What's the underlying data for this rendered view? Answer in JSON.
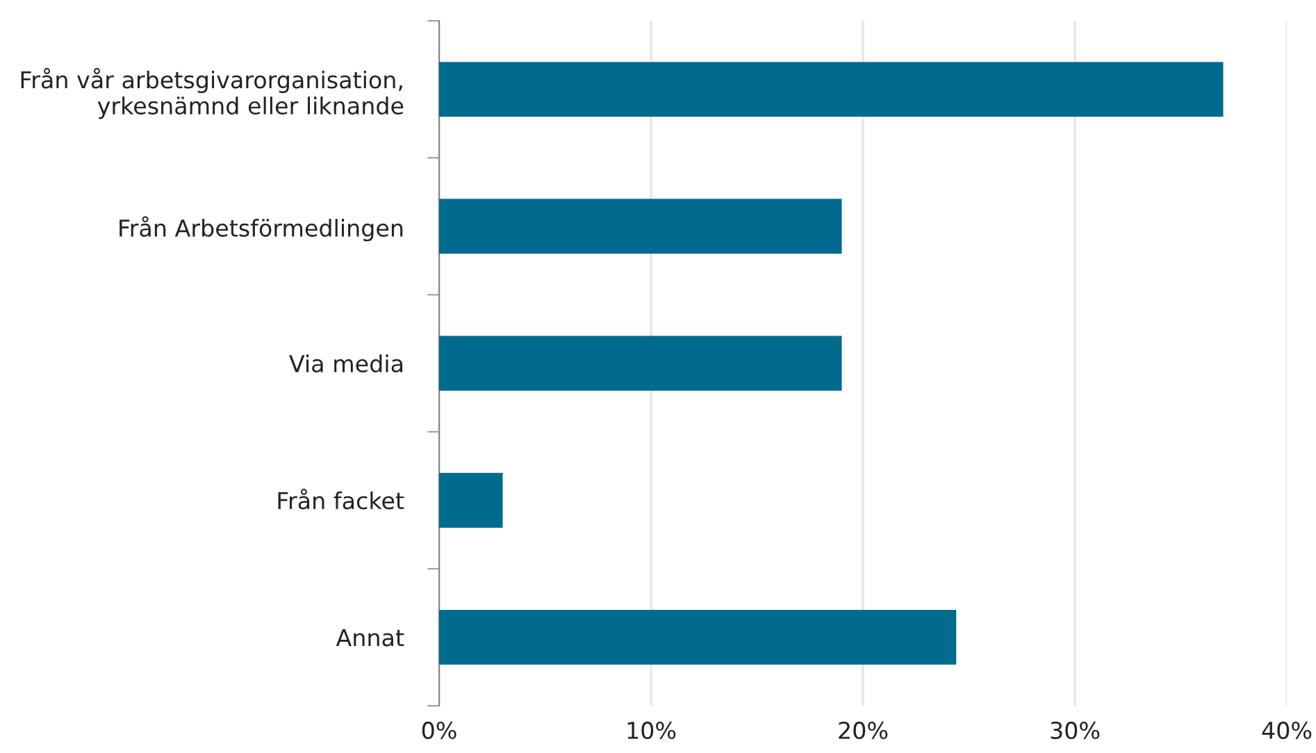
{
  "chart_data": {
    "type": "bar",
    "orientation": "horizontal",
    "categories": [
      "Från vår arbetsgivarorganisation,\nyrkesnämnd eller liknande",
      "Från Arbetsförmedlingen",
      "Via media",
      "Från facket",
      "Annat"
    ],
    "values": [
      37.0,
      19.0,
      19.0,
      3.0,
      24.4
    ],
    "color": "#006b8f",
    "xlim": [
      0,
      40
    ],
    "xticks": [
      {
        "value": 0,
        "label": "0%"
      },
      {
        "value": 10,
        "label": "10%"
      },
      {
        "value": 20,
        "label": "20%"
      },
      {
        "value": 30,
        "label": "30%"
      },
      {
        "value": 40,
        "label": "40%"
      }
    ],
    "grid": "x"
  }
}
